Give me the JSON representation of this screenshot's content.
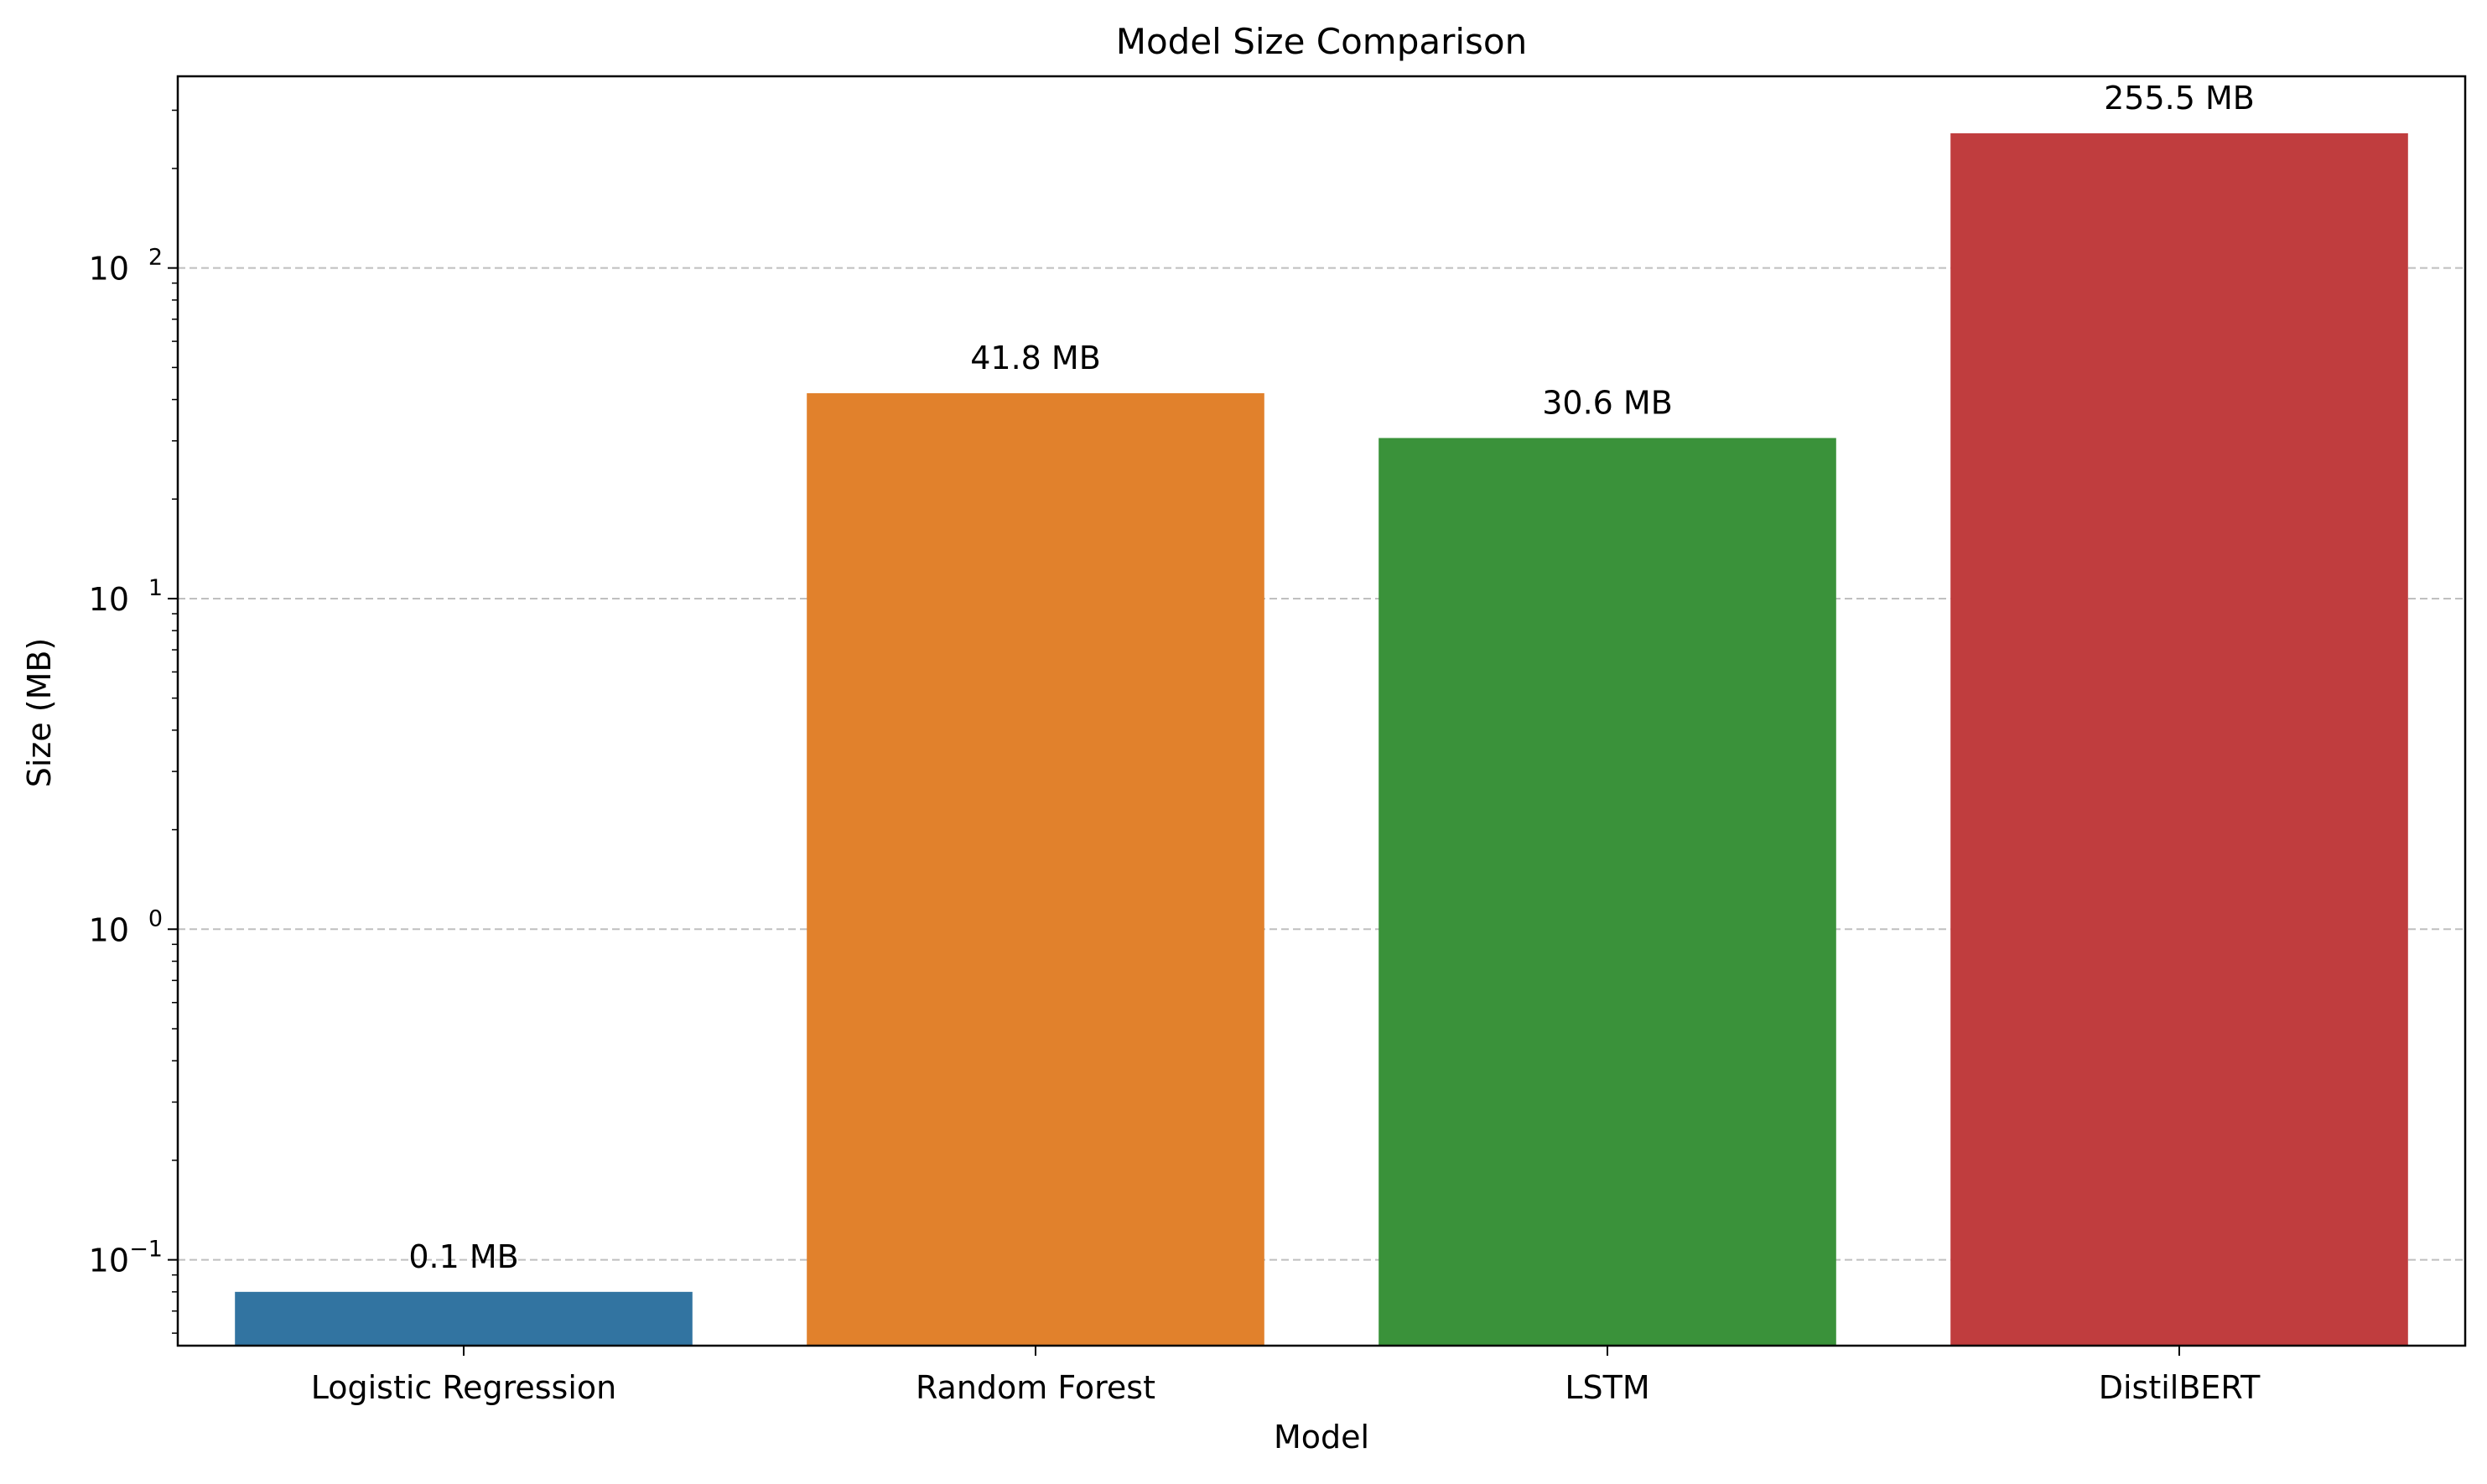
{
  "chart_data": {
    "type": "bar",
    "title": "Model Size Comparison",
    "xlabel": "Model",
    "ylabel": "Size (MB)",
    "yscale": "log",
    "ylim": [
      0.055,
      380
    ],
    "grid": "y-major-dashed",
    "categories": [
      "Logistic Regression",
      "Random Forest",
      "LSTM",
      "DistilBERT"
    ],
    "values": [
      0.08,
      41.8,
      30.6,
      255.5
    ],
    "data_labels": [
      "0.1 MB",
      "41.8 MB",
      "30.6 MB",
      "255.5 MB"
    ],
    "colors": [
      "#3274a1",
      "#e1812c",
      "#3a923a",
      "#c03d3e"
    ],
    "y_ticks": [
      {
        "value": 0.1,
        "base": "10",
        "exp": "−1"
      },
      {
        "value": 1,
        "base": "10",
        "exp": "0"
      },
      {
        "value": 10,
        "base": "10",
        "exp": "1"
      },
      {
        "value": 100,
        "base": "10",
        "exp": "2"
      }
    ]
  }
}
